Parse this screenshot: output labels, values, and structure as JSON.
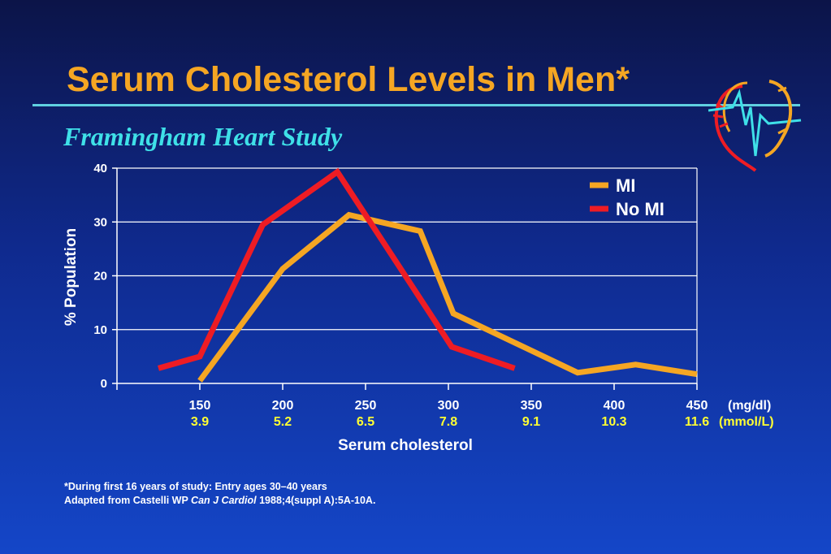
{
  "slide": {
    "title": "Serum Cholesterol Levels in Men*",
    "subtitle": "Framingham Heart Study",
    "footnote_line1": "*During first 16 years of study: Entry ages 30–40 years",
    "footnote_line2_pre": "Adapted from Castelli WP ",
    "footnote_line2_journal": "Can J Cardiol",
    "footnote_line2_post": " 1988;4(suppl A):5A-10A."
  },
  "colors": {
    "title": "#f5a623",
    "subtitle": "#3fe0e8",
    "mi_series": "#f5a623",
    "no_mi_series": "#ee1c24",
    "mmol_labels": "#ffff33",
    "gridline": "#ffffff"
  },
  "chart_data": {
    "type": "line",
    "xlabel": "Serum cholesterol",
    "ylabel": "% Population",
    "xlim": [
      100,
      450
    ],
    "ylim": [
      0,
      40
    ],
    "x_ticks": [
      150,
      200,
      250,
      300,
      350,
      400,
      450
    ],
    "x_tick_labels_mgdl": [
      "150",
      "200",
      "250",
      "300",
      "350",
      "400",
      "450"
    ],
    "x_tick_labels_mmol": [
      "3.9",
      "5.2",
      "6.5",
      "7.8",
      "9.1",
      "10.3",
      "11.6"
    ],
    "x_unit_mgdl": "(mg/dl)",
    "x_unit_mmol": "(mmol/L)",
    "y_ticks": [
      0,
      10,
      20,
      30,
      40
    ],
    "y_tick_labels": [
      "0",
      "10",
      "20",
      "30",
      "40"
    ],
    "grid": true,
    "legend_position": "top-right",
    "series": [
      {
        "name": "MI",
        "color": "#f5a623",
        "x": [
          150,
          200,
          240,
          283,
          303,
          378,
          413,
          450
        ],
        "y": [
          0.5,
          21.3,
          31.3,
          28.3,
          13,
          2,
          3.5,
          1.7
        ]
      },
      {
        "name": "No MI",
        "color": "#ee1c24",
        "x": [
          125,
          150,
          188,
          233,
          302,
          340
        ],
        "y": [
          2.8,
          5,
          29.5,
          39.3,
          6.8,
          2.8
        ]
      }
    ]
  }
}
